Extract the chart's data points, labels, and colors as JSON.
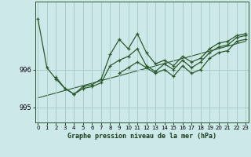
{
  "title": "Graphe pression niveau de la mer (hPa)",
  "bg_color": "#cce8e8",
  "grid_color": "#aacccc",
  "line_color": "#2d5a2d",
  "x_ticks": [
    0,
    1,
    2,
    3,
    4,
    5,
    6,
    7,
    8,
    9,
    10,
    11,
    12,
    13,
    14,
    15,
    16,
    17,
    18,
    19,
    20,
    21,
    22,
    23
  ],
  "ylim": [
    994.6,
    997.8
  ],
  "yticks": [
    995,
    996
  ],
  "series1": [
    997.35,
    996.05,
    995.75,
    995.5,
    995.35,
    995.55,
    995.6,
    995.75,
    996.4,
    996.8,
    996.55,
    996.95,
    996.45,
    996.15,
    996.25,
    996.1,
    996.35,
    996.2,
    996.3,
    996.55,
    996.7,
    996.75,
    996.9,
    996.95
  ],
  "series2": [
    null,
    null,
    995.8,
    995.5,
    995.35,
    995.5,
    995.55,
    995.65,
    996.1,
    996.25,
    996.35,
    996.55,
    996.1,
    995.95,
    996.15,
    996.0,
    996.25,
    996.05,
    996.2,
    996.45,
    996.6,
    996.65,
    996.85,
    996.9
  ],
  "series3": [
    null,
    null,
    null,
    null,
    null,
    null,
    null,
    null,
    null,
    995.9,
    996.05,
    996.2,
    996.05,
    995.9,
    996.0,
    995.82,
    996.1,
    995.9,
    996.0,
    996.3,
    996.45,
    996.5,
    996.75,
    996.8
  ],
  "trend_x": [
    0,
    23
  ],
  "trend_y": [
    995.25,
    996.75
  ]
}
